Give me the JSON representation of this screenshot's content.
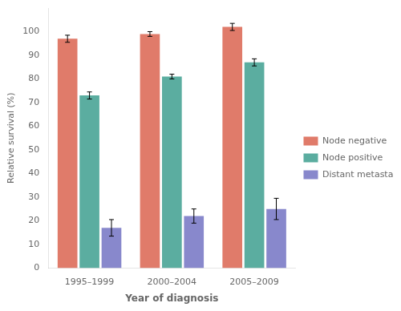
{
  "chart_data": {
    "type": "bar",
    "categories": [
      "1995–1999",
      "2000–2004",
      "2005–2009"
    ],
    "series": [
      {
        "name": "Node negative",
        "color": "#E07B6A",
        "values": [
          97,
          99,
          102
        ],
        "errors": [
          1.5,
          1.0,
          1.5
        ]
      },
      {
        "name": "Node positive",
        "color": "#5BADA0",
        "values": [
          73,
          81,
          87
        ],
        "errors": [
          1.5,
          1.0,
          1.5
        ]
      },
      {
        "name": "Distant metastasis",
        "color": "#8888CC",
        "values": [
          17,
          22,
          25
        ],
        "errors": [
          3.5,
          3.0,
          4.5
        ]
      }
    ],
    "xlabel": "Year of diagnosis",
    "ylabel": "Relative survival (%)",
    "ylim": [
      0,
      110
    ],
    "yticks": [
      0,
      10,
      20,
      30,
      40,
      50,
      60,
      70,
      80,
      90,
      100
    ],
    "grid": false,
    "legend": "right"
  }
}
